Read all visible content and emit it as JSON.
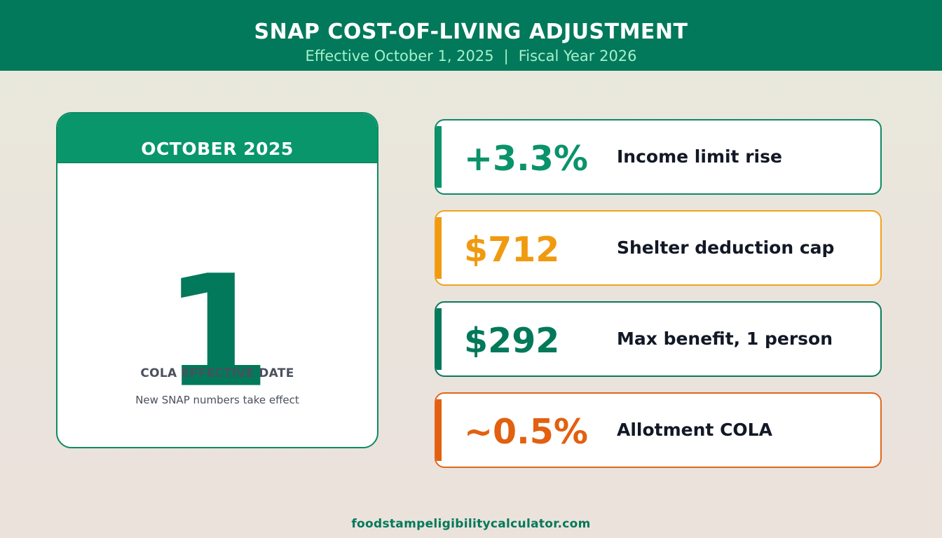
{
  "header": {
    "title": "SNAP COST-OF-LIVING ADJUSTMENT",
    "subtitle_effective": "Effective October 1, 2025",
    "subtitle_separator": "|",
    "subtitle_fiscal": "Fiscal Year 2026"
  },
  "calendar": {
    "month": "OCTOBER 2025",
    "day": "1",
    "label": "COLA EFFECTIVE DATE",
    "note": "New SNAP numbers take effect"
  },
  "stats": [
    {
      "value": "+3.3%",
      "label": "Income limit rise",
      "color": "#0a936a",
      "border": "#0e8a64"
    },
    {
      "value": "$712",
      "label": "Shelter deduction cap",
      "color": "#f09a10",
      "border": "#f0a21c"
    },
    {
      "value": "$292",
      "label": "Max benefit, 1 person",
      "color": "#02795a",
      "border": "#0a7a5a"
    },
    {
      "value": "~0.5%",
      "label": "Allotment COLA",
      "color": "#e2600f",
      "border": "#e0671c"
    }
  ],
  "footer": {
    "site": "foodstampeligibilitycalculator.com"
  }
}
